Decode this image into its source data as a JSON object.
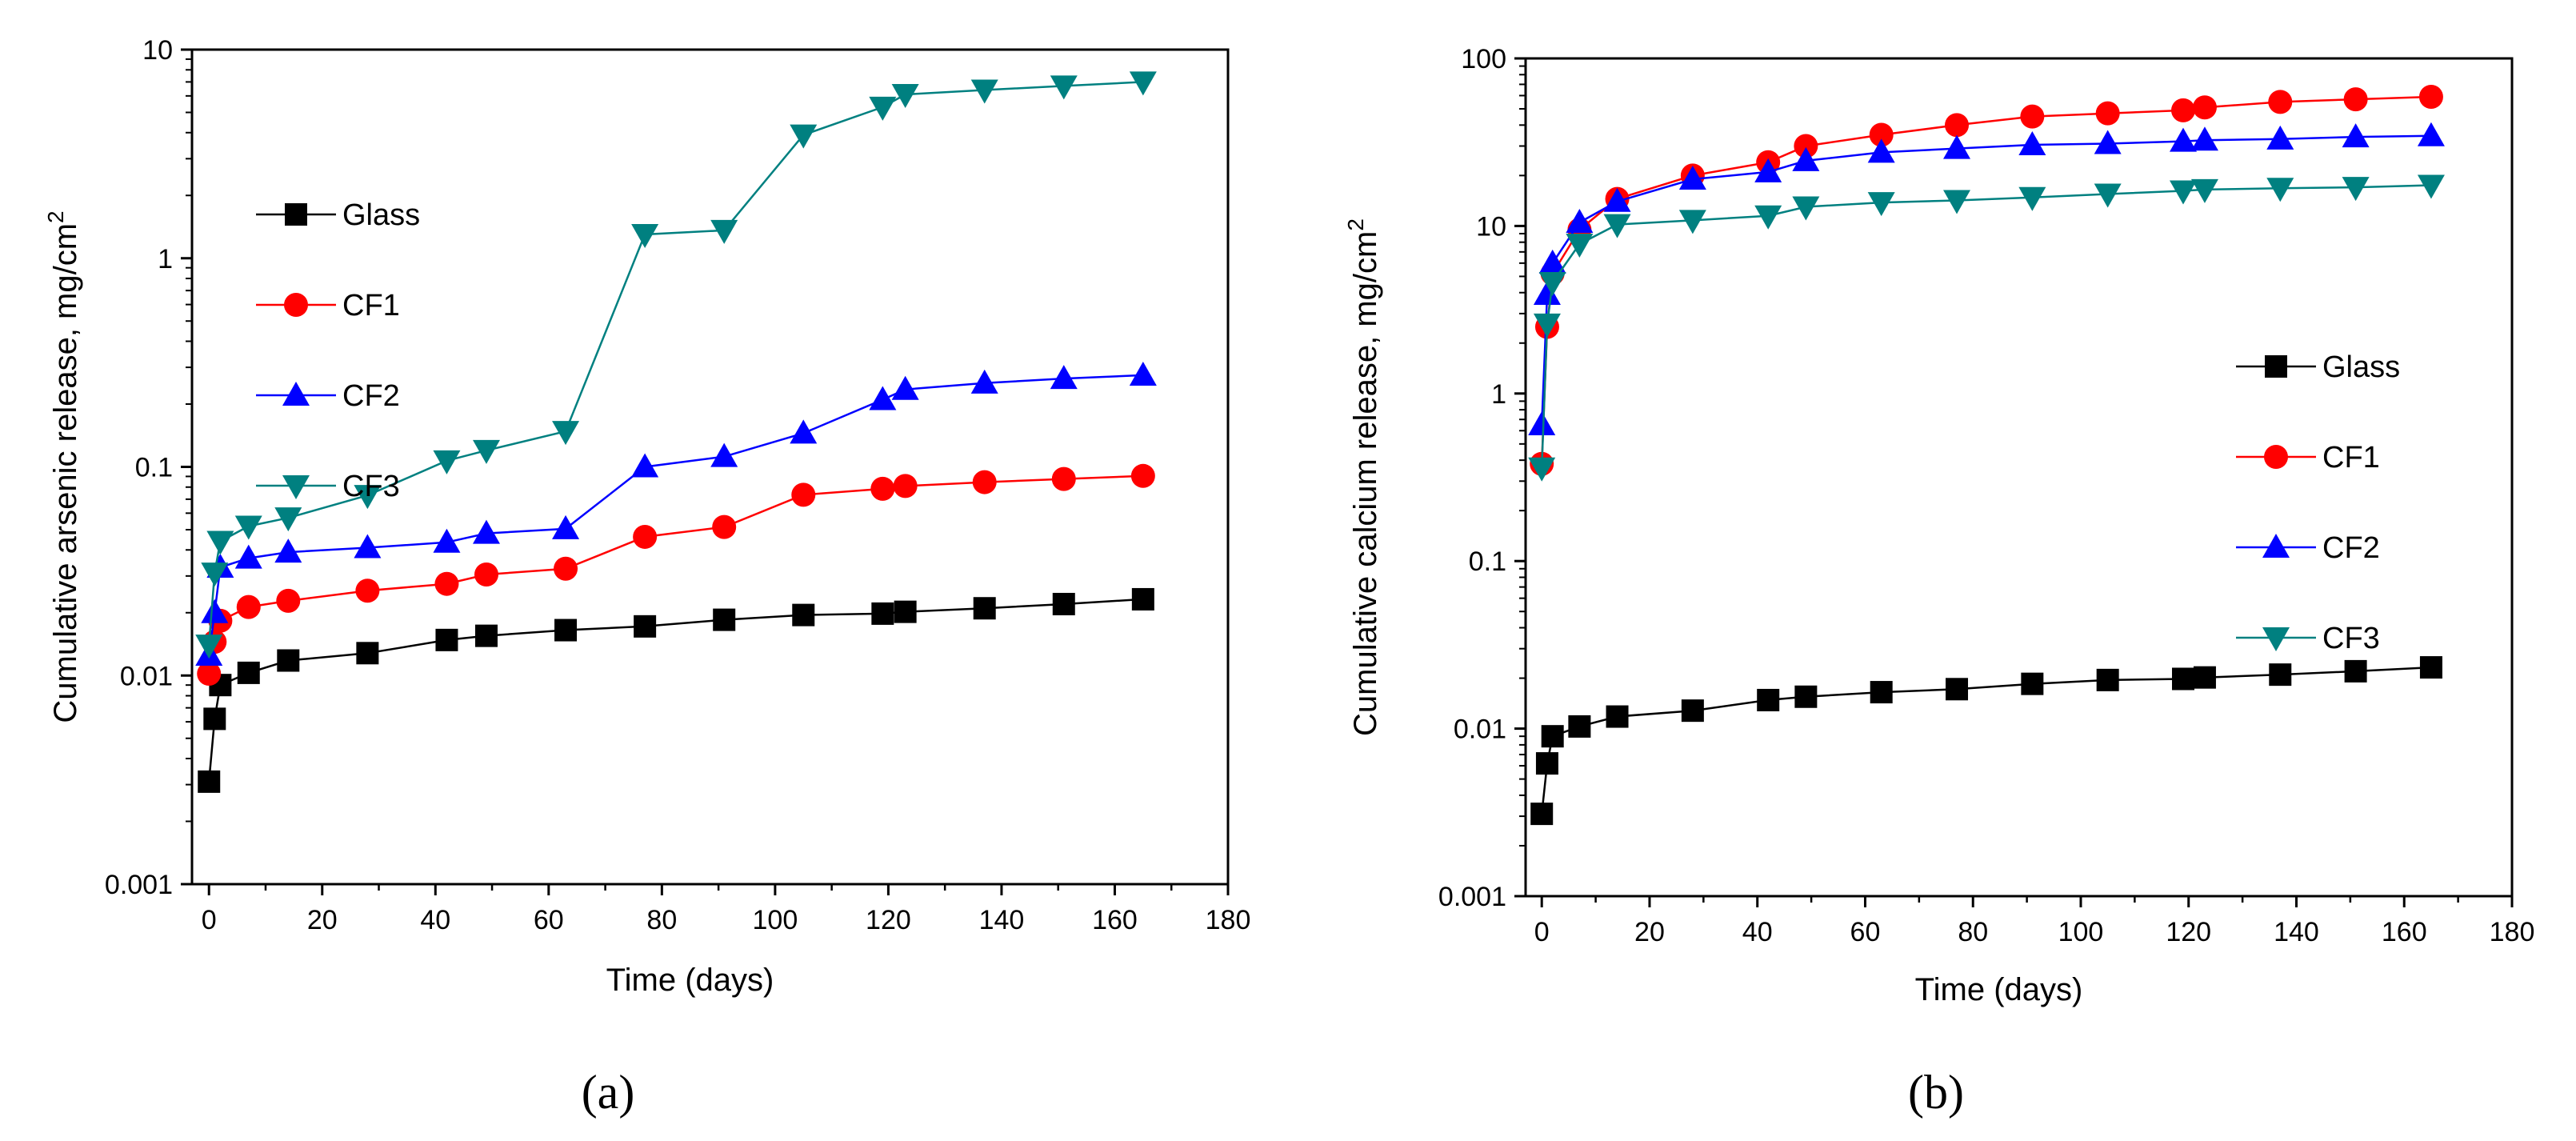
{
  "chart_data": [
    {
      "type": "line",
      "panel_label": "(a)",
      "title": "",
      "xlabel": "Time (days)",
      "ylabel": "Cumulative arsenic release, mg/cm",
      "ylabel_sup": "2",
      "yscale": "log",
      "xlim": [
        -3,
        180
      ],
      "ylim": [
        0.001,
        10
      ],
      "x_ticks": [
        0,
        20,
        40,
        60,
        80,
        100,
        120,
        140,
        160,
        180
      ],
      "x_tick_labels": [
        "0",
        "20",
        "40",
        "60",
        "80",
        "100",
        "120",
        "140",
        "160",
        "180"
      ],
      "y_ticks": [
        0.001,
        0.01,
        0.1,
        1,
        10
      ],
      "y_tick_labels": [
        "0.001",
        "0.01",
        "0.1",
        "1",
        "10"
      ],
      "legend_position": "upper-left",
      "x": [
        0,
        1,
        2,
        7,
        14,
        28,
        42,
        49,
        63,
        77,
        91,
        105,
        119,
        123,
        137,
        151,
        165
      ],
      "series": [
        {
          "name": "Glass",
          "color": "#000000",
          "marker": "square",
          "values": [
            0.0031,
            0.0062,
            0.009,
            0.0103,
            0.0118,
            0.0128,
            0.0148,
            0.0155,
            0.0165,
            0.0172,
            0.0185,
            0.0195,
            0.0198,
            0.0202,
            0.021,
            0.022,
            0.0232
          ]
        },
        {
          "name": "CF1",
          "color": "#ff0000",
          "marker": "circle",
          "values": [
            0.0102,
            0.0145,
            0.0183,
            0.0213,
            0.0228,
            0.0255,
            0.0275,
            0.0305,
            0.0325,
            0.0462,
            0.0515,
            0.0735,
            0.0785,
            0.081,
            0.0845,
            0.0875,
            0.0905
          ]
        },
        {
          "name": "CF2",
          "color": "#0000ff",
          "marker": "triangle-up",
          "values": [
            0.0125,
            0.02,
            0.033,
            0.0365,
            0.039,
            0.041,
            0.0435,
            0.048,
            0.0505,
            0.1,
            0.112,
            0.145,
            0.21,
            0.235,
            0.252,
            0.265,
            0.275
          ]
        },
        {
          "name": "CF3",
          "color": "#008080",
          "marker": "triangle-down",
          "values": [
            0.014,
            0.031,
            0.044,
            0.052,
            0.057,
            0.073,
            0.107,
            0.12,
            0.148,
            1.3,
            1.36,
            3.9,
            5.3,
            6.1,
            6.4,
            6.7,
            7.0
          ]
        }
      ]
    },
    {
      "type": "line",
      "panel_label": "(b)",
      "title": "",
      "xlabel": "Time (days)",
      "ylabel": "Cumulative calcium release, mg/cm",
      "ylabel_sup": "2",
      "yscale": "log",
      "xlim": [
        -3,
        180
      ],
      "ylim": [
        0.001,
        100
      ],
      "x_ticks": [
        0,
        20,
        40,
        60,
        80,
        100,
        120,
        140,
        160,
        180
      ],
      "x_tick_labels": [
        "0",
        "20",
        "40",
        "60",
        "80",
        "100",
        "120",
        "140",
        "160",
        "180"
      ],
      "y_ticks": [
        0.001,
        0.01,
        0.1,
        1,
        10,
        100
      ],
      "y_tick_labels": [
        "0.001",
        "0.01",
        "0.1",
        "1",
        "10",
        "100"
      ],
      "legend_position": "right-middle",
      "x": [
        0,
        1,
        2,
        7,
        14,
        28,
        42,
        49,
        63,
        77,
        91,
        105,
        119,
        123,
        137,
        151,
        165
      ],
      "series": [
        {
          "name": "Glass",
          "color": "#000000",
          "marker": "square",
          "values": [
            0.0031,
            0.0062,
            0.009,
            0.0103,
            0.0118,
            0.0128,
            0.0148,
            0.0155,
            0.0165,
            0.0172,
            0.0185,
            0.0195,
            0.0198,
            0.0202,
            0.021,
            0.022,
            0.0232
          ]
        },
        {
          "name": "CF1",
          "color": "#ff0000",
          "marker": "circle",
          "values": [
            0.38,
            2.5,
            5.2,
            9.5,
            14.5,
            20,
            24,
            30,
            35,
            40,
            45,
            47,
            49,
            51,
            55,
            57,
            59
          ]
        },
        {
          "name": "CF2",
          "color": "#0000ff",
          "marker": "triangle-up",
          "values": [
            0.65,
            3.9,
            6.0,
            10.5,
            14,
            19,
            21,
            24.5,
            27.5,
            29,
            30.5,
            31,
            32,
            32.5,
            33,
            34,
            34.5
          ]
        },
        {
          "name": "CF3",
          "color": "#008080",
          "marker": "triangle-down",
          "values": [
            0.36,
            2.6,
            4.6,
            7.8,
            10.2,
            10.8,
            11.5,
            13,
            13.8,
            14.2,
            14.8,
            15.5,
            16.2,
            16.5,
            16.8,
            17,
            17.5
          ]
        }
      ]
    }
  ]
}
